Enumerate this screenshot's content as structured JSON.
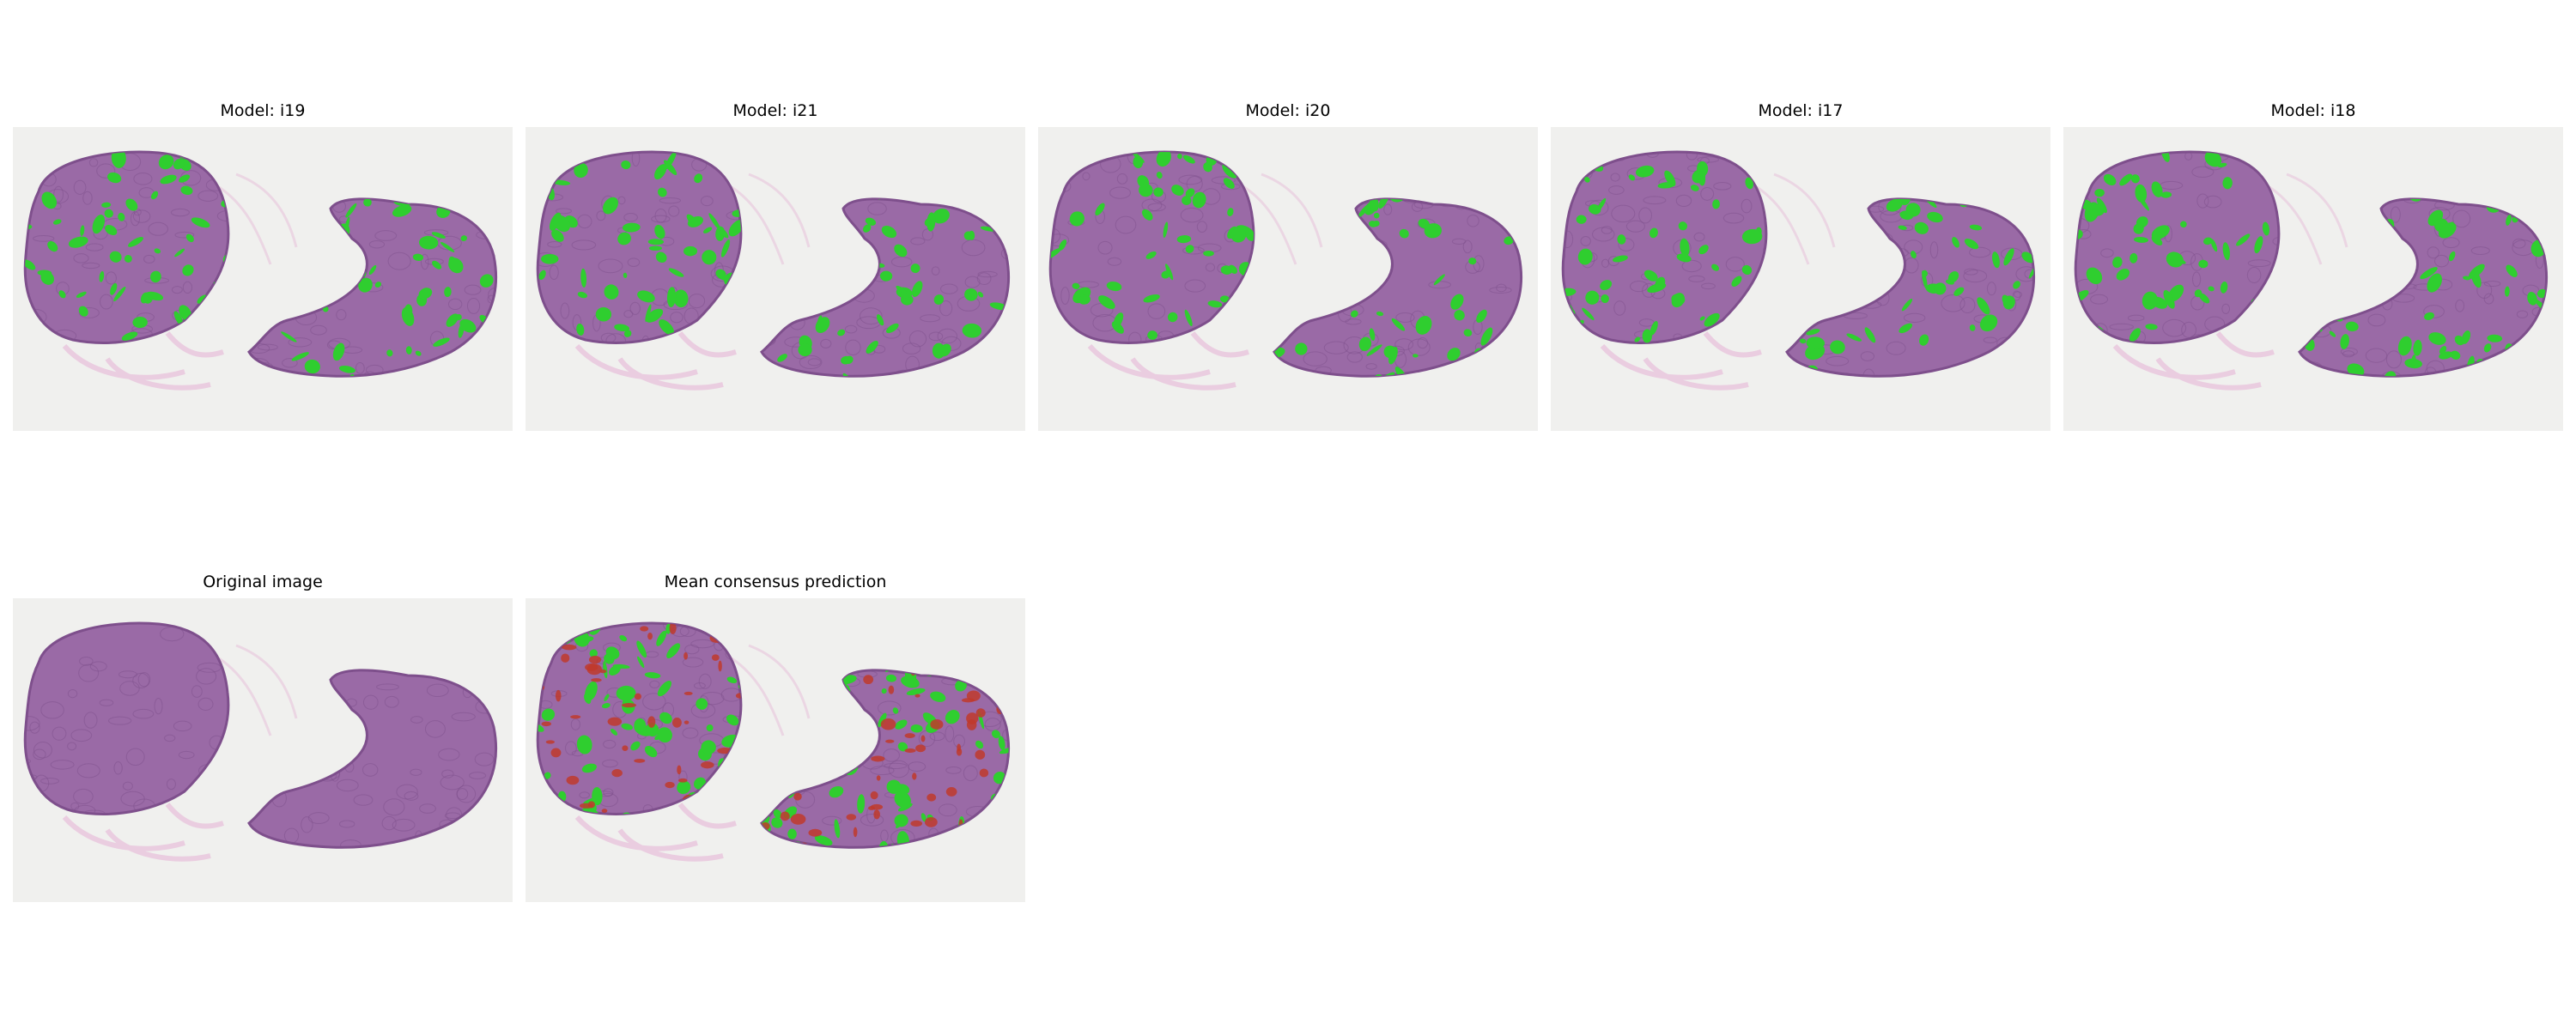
{
  "panels_row1": [
    {
      "title": "Model: i19",
      "seed": 19,
      "overlay": "binary"
    },
    {
      "title": "Model: i21",
      "seed": 21,
      "overlay": "binary"
    },
    {
      "title": "Model: i20",
      "seed": 20,
      "overlay": "binary"
    },
    {
      "title": "Model: i17",
      "seed": 17,
      "overlay": "binary"
    },
    {
      "title": "Model: i18",
      "seed": 18,
      "overlay": "binary"
    }
  ],
  "panels_row2": [
    {
      "title": "Original image",
      "seed": 5,
      "overlay": "none"
    },
    {
      "title": "Mean consensus prediction",
      "seed": 7,
      "overlay": "consensus"
    }
  ],
  "colors": {
    "background": "#f0f0ee",
    "tissue": "#9a6aa6",
    "tissue_edge": "#7e4f8c",
    "stroma": "#e8c4dc",
    "segmentation": "#2fce2f",
    "consensus_low": "#c0392b"
  }
}
